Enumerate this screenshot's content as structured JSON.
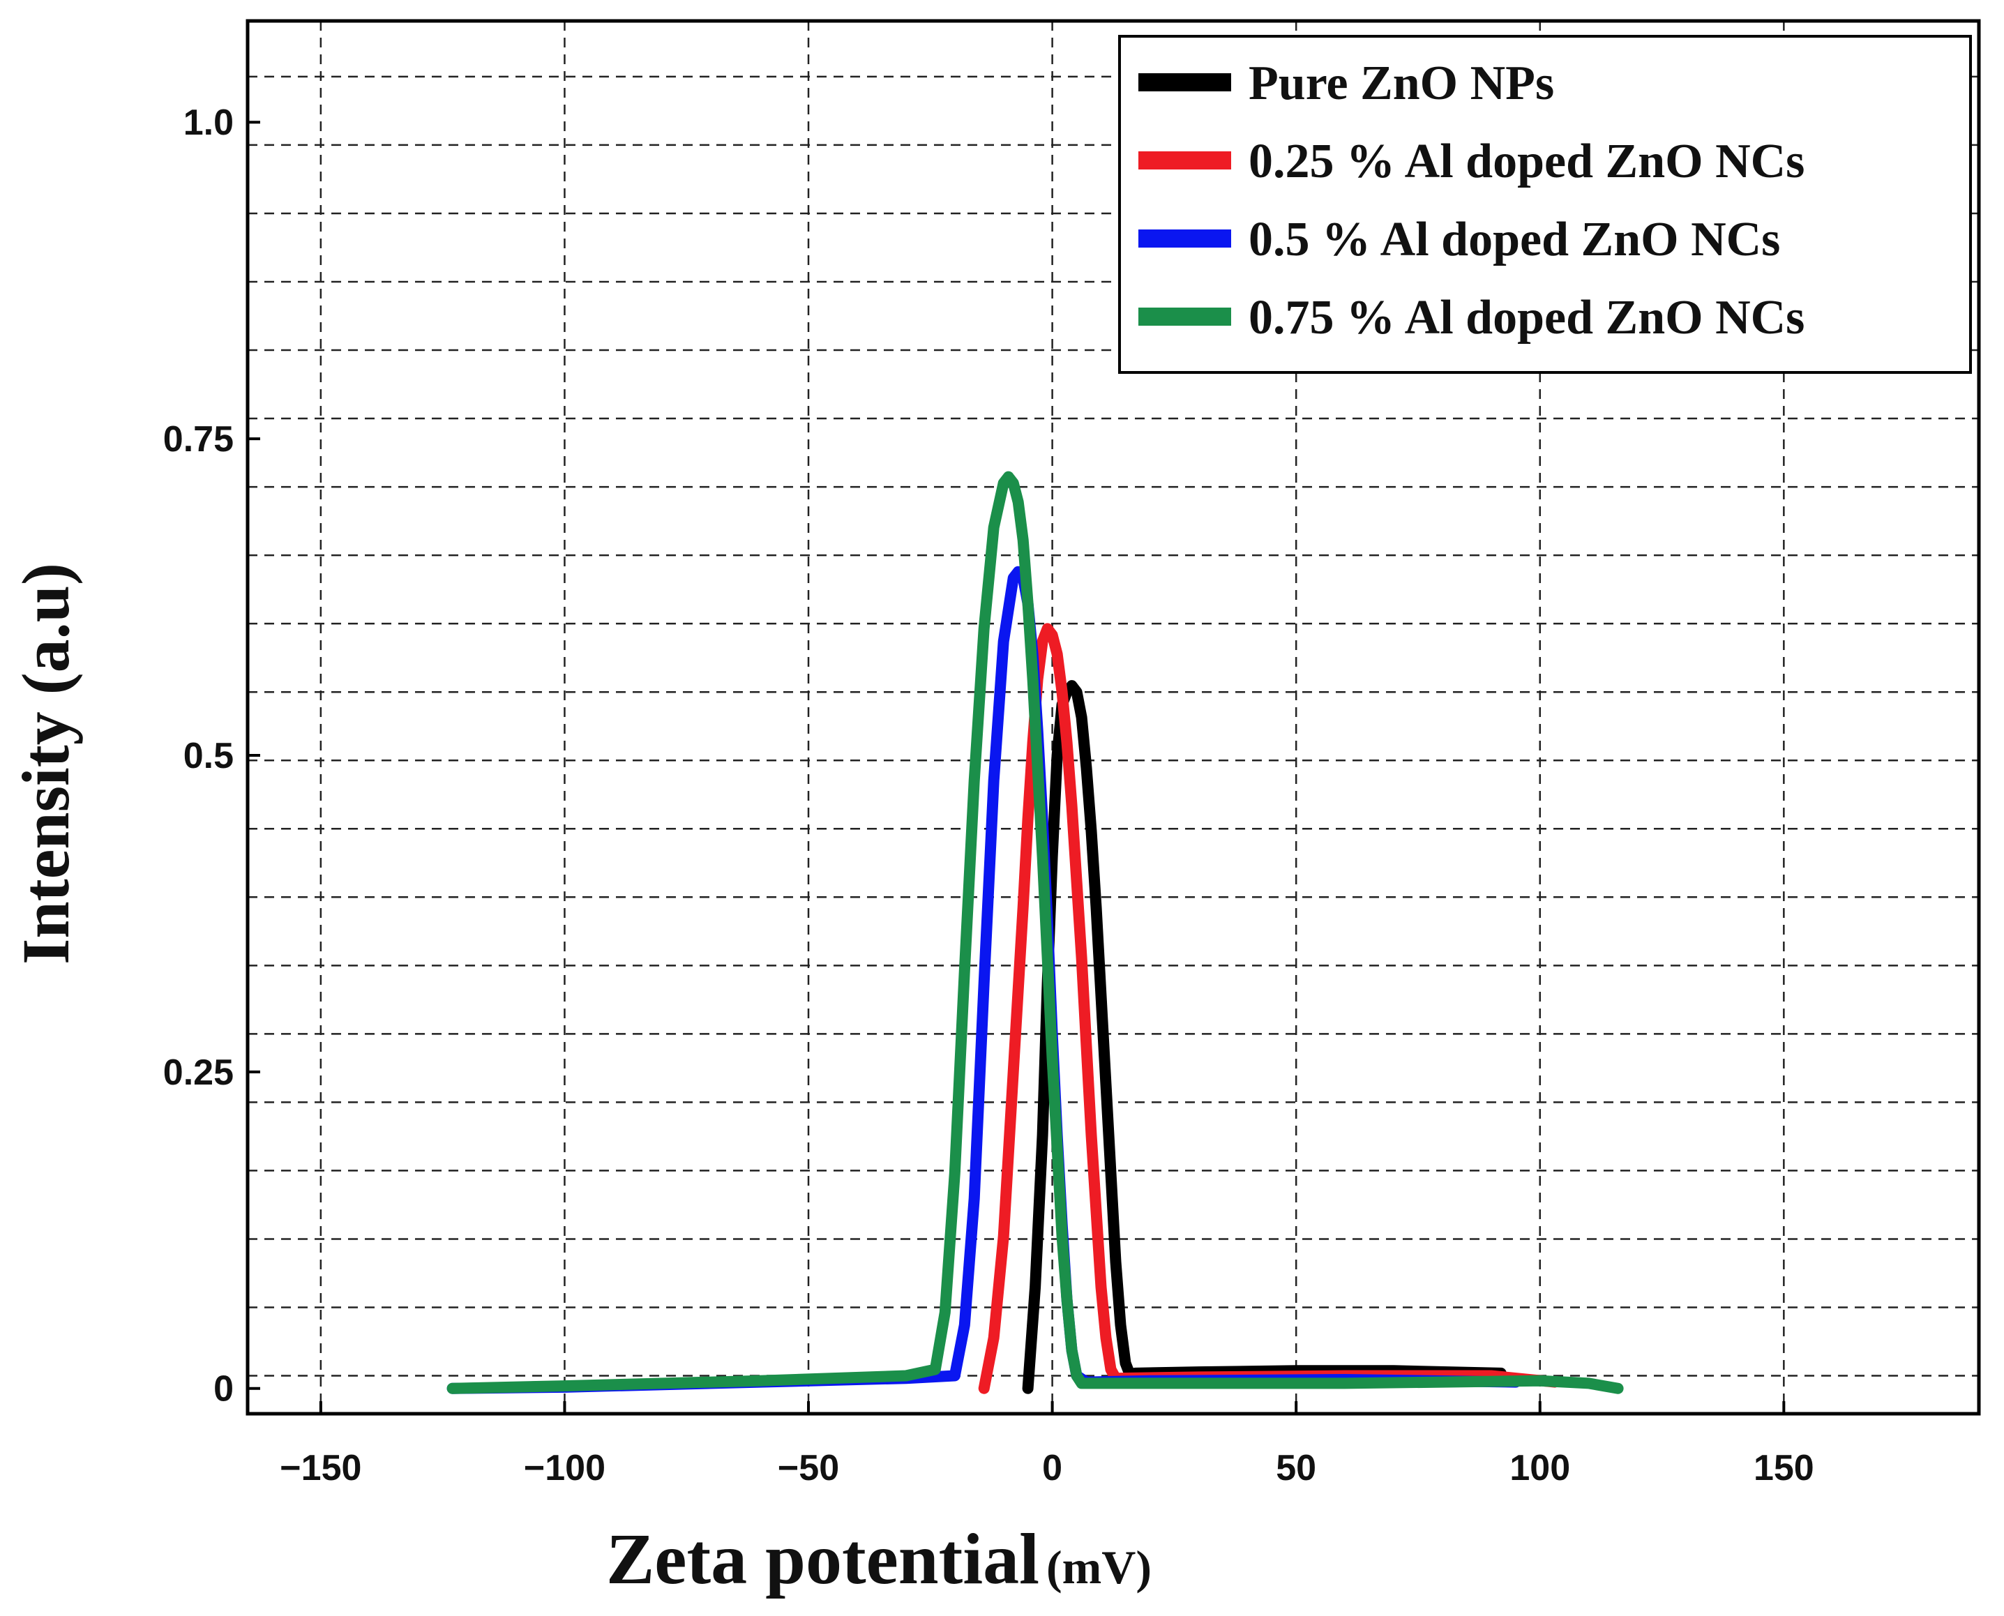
{
  "chart_data": {
    "type": "line",
    "title": "",
    "xlabel": "Zeta potential",
    "xlabel_unit": "(mV)",
    "ylabel": "Intensity (a.u)",
    "xlim": [
      -165,
      190
    ],
    "ylim": [
      -0.02,
      1.08
    ],
    "xticks": [
      -150,
      -100,
      -50,
      0,
      50,
      100,
      150
    ],
    "xtick_labels": [
      "−150",
      "−100",
      "−50",
      "0",
      "50",
      "100",
      "150"
    ],
    "yticks": [
      0,
      0.25,
      0.5,
      0.75,
      1.0
    ],
    "ytick_labels": [
      "0",
      "0.25",
      "0.5",
      "0.75",
      "1.0"
    ],
    "grid": true,
    "legend_position": "top-right",
    "series": [
      {
        "name": "Pure ZnO NPs",
        "color": "#000000",
        "x": [
          -5,
          -3.5,
          -2,
          -1,
          0,
          1,
          2,
          3,
          4,
          5,
          6,
          7,
          8,
          9,
          10,
          11,
          12,
          13,
          14,
          15,
          16,
          17,
          30,
          50,
          70,
          92
        ],
        "y": [
          0,
          0.08,
          0.2,
          0.32,
          0.42,
          0.5,
          0.54,
          0.55,
          0.555,
          0.55,
          0.53,
          0.49,
          0.44,
          0.38,
          0.31,
          0.24,
          0.17,
          0.1,
          0.05,
          0.02,
          0.01,
          0.012,
          0.013,
          0.014,
          0.014,
          0.012
        ]
      },
      {
        "name": "0.25 % Al doped ZnO NCs",
        "color": "#ee1c24",
        "x": [
          -14,
          -12,
          -10,
          -8,
          -6,
          -5,
          -4,
          -3,
          -2,
          -1,
          0,
          1,
          2,
          3,
          4,
          5,
          6,
          7,
          8,
          9,
          10,
          11,
          12,
          13,
          30,
          60,
          90,
          103
        ],
        "y": [
          0,
          0.04,
          0.12,
          0.25,
          0.38,
          0.45,
          0.51,
          0.56,
          0.59,
          0.6,
          0.595,
          0.58,
          0.55,
          0.51,
          0.46,
          0.4,
          0.34,
          0.27,
          0.2,
          0.14,
          0.08,
          0.04,
          0.015,
          0.008,
          0.009,
          0.01,
          0.01,
          0.005
        ]
      },
      {
        "name": "0.5 % Al doped ZnO NCs",
        "color": "#0a16f0",
        "x": [
          -123,
          -100,
          -60,
          -30,
          -20,
          -18,
          -16,
          -14,
          -12,
          -10,
          -8,
          -7,
          -6,
          -5,
          -4,
          -3,
          -2,
          -1,
          0,
          1,
          2,
          3,
          4,
          5,
          7,
          20,
          60,
          95
        ],
        "y": [
          0,
          0.001,
          0.005,
          0.008,
          0.01,
          0.05,
          0.15,
          0.32,
          0.48,
          0.59,
          0.64,
          0.645,
          0.64,
          0.62,
          0.58,
          0.52,
          0.45,
          0.37,
          0.28,
          0.2,
          0.13,
          0.07,
          0.03,
          0.01,
          0.005,
          0.006,
          0.007,
          0.005
        ]
      },
      {
        "name": "0.75 % Al doped ZnO NCs",
        "color": "#1b8f4a",
        "x": [
          -123,
          -100,
          -60,
          -30,
          -24,
          -22,
          -20,
          -18,
          -16,
          -14,
          -12,
          -10,
          -9,
          -8,
          -7,
          -6,
          -5,
          -4,
          -3,
          -2,
          -1,
          0,
          1,
          2,
          3,
          4,
          5,
          6,
          20,
          60,
          100,
          110,
          116
        ],
        "y": [
          0,
          0.002,
          0.006,
          0.01,
          0.015,
          0.06,
          0.17,
          0.33,
          0.48,
          0.6,
          0.68,
          0.715,
          0.72,
          0.715,
          0.7,
          0.67,
          0.62,
          0.56,
          0.49,
          0.42,
          0.34,
          0.26,
          0.19,
          0.12,
          0.07,
          0.03,
          0.01,
          0.004,
          0.004,
          0.004,
          0.006,
          0.004,
          0
        ]
      }
    ]
  }
}
